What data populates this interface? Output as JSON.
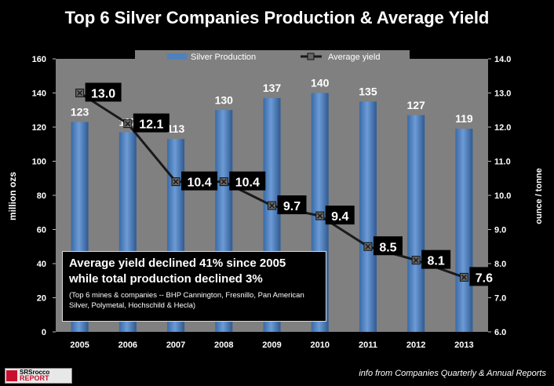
{
  "title": "Top 6 Silver Companies Production & Average Yield",
  "chart_data": {
    "type": "bar+line",
    "title": "Top 6 Silver Companies Production & Average Yield",
    "categories": [
      "2005",
      "2006",
      "2007",
      "2008",
      "2009",
      "2010",
      "2011",
      "2012",
      "2013"
    ],
    "series": [
      {
        "name": "Silver Production",
        "type": "bar",
        "axis": "left",
        "values": [
          123,
          117,
          113,
          130,
          137,
          140,
          135,
          127,
          119
        ]
      },
      {
        "name": "Average yield",
        "type": "line",
        "axis": "right",
        "values": [
          13.0,
          12.1,
          10.4,
          10.4,
          9.7,
          9.4,
          8.5,
          8.1,
          7.6
        ]
      }
    ],
    "ylabel": "million ozs",
    "y2label": "ounce / tonne",
    "ylim": [
      0,
      160
    ],
    "y2lim": [
      6.0,
      14.0
    ],
    "yticks": [
      "0",
      "20",
      "40",
      "60",
      "80",
      "100",
      "120",
      "140",
      "160"
    ],
    "y2ticks": [
      "6.0",
      "7.0",
      "8.0",
      "9.0",
      "10.0",
      "11.0",
      "12.0",
      "13.0",
      "14.0"
    ],
    "legend_position": "top",
    "grid": false,
    "colors": {
      "bar": "#4f81bd",
      "line": "#1a1a1a",
      "background": "#000000",
      "plot_area": "#808080"
    }
  },
  "annotation": {
    "line1": "Average yield declined 41% since 2005",
    "line2": "while total production declined 3%",
    "note": "(Top 6 mines & companies -- BHP Cannington, Fresnillo, Pan American Silver, Polymetal, Hochschild & Hecla)"
  },
  "logo": {
    "top": "SRSrocco",
    "bottom": "REPORT"
  },
  "source": "info from Companies Quarterly & Annual Reports"
}
